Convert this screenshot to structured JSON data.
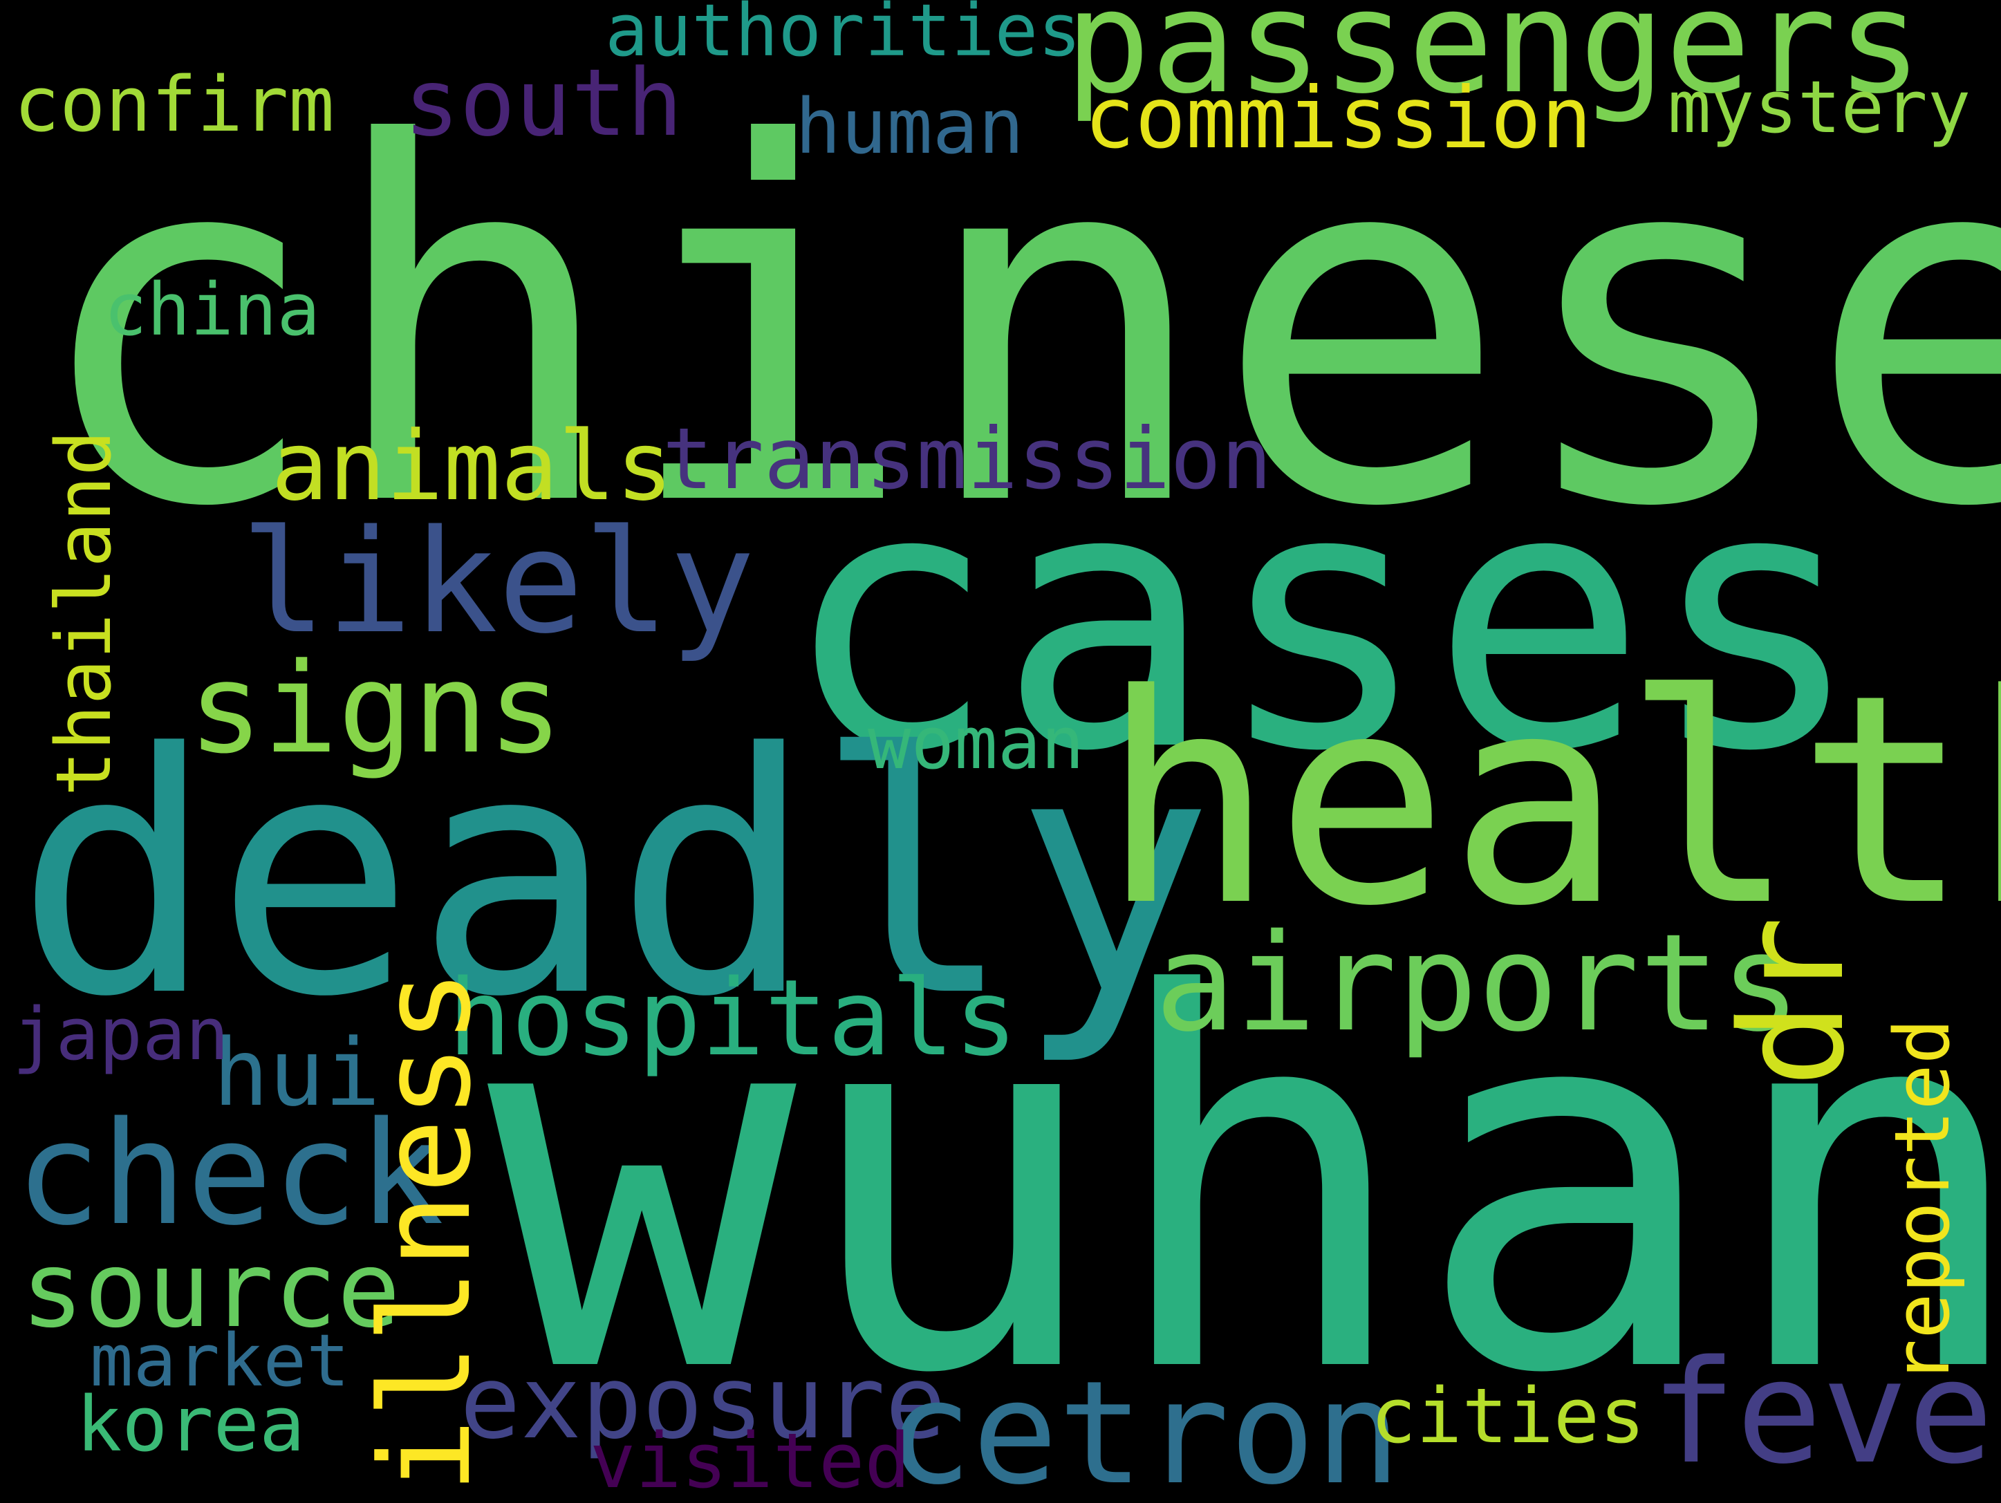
{
  "background": "#000000",
  "words": [
    {
      "key": "chinese",
      "text": "chinese",
      "color": "#5ec962"
    },
    {
      "key": "wuhan",
      "text": "wuhan",
      "color": "#2ab07f"
    },
    {
      "key": "cases",
      "text": "cases",
      "color": "#2ab07f"
    },
    {
      "key": "deadly",
      "text": "deadly",
      "color": "#21918c"
    },
    {
      "key": "health",
      "text": "health",
      "color": "#7ad151"
    },
    {
      "key": "passengers",
      "text": "passengers",
      "color": "#7ad151"
    },
    {
      "key": "likely",
      "text": "likely",
      "color": "#3b528b"
    },
    {
      "key": "signs",
      "text": "signs",
      "color": "#86d549"
    },
    {
      "key": "animals",
      "text": "animals",
      "color": "#c2df23"
    },
    {
      "key": "transmission",
      "text": "transmission",
      "color": "#46327e"
    },
    {
      "key": "south",
      "text": "south",
      "color": "#482475"
    },
    {
      "key": "authorities",
      "text": "authorities",
      "color": "#1f9a8a"
    },
    {
      "key": "commission",
      "text": "commission",
      "color": "#e5e419"
    },
    {
      "key": "human",
      "text": "human",
      "color": "#31688e"
    },
    {
      "key": "mystery",
      "text": "mystery",
      "color": "#8fd744"
    },
    {
      "key": "confirm",
      "text": "confirm",
      "color": "#a2da37"
    },
    {
      "key": "china",
      "text": "china",
      "color": "#4ac16d"
    },
    {
      "key": "airports",
      "text": "airports",
      "color": "#6ccd5a"
    },
    {
      "key": "hospitals",
      "text": "hospitals",
      "color": "#29af7f"
    },
    {
      "key": "woman",
      "text": "woman",
      "color": "#35b779"
    },
    {
      "key": "check",
      "text": "check",
      "color": "#2d708e"
    },
    {
      "key": "hui",
      "text": "hui",
      "color": "#2c728e"
    },
    {
      "key": "japan",
      "text": "japan",
      "color": "#472d7b"
    },
    {
      "key": "source",
      "text": "source",
      "color": "#65cb5e"
    },
    {
      "key": "market",
      "text": "market",
      "color": "#2f6c8e"
    },
    {
      "key": "korea",
      "text": "korea",
      "color": "#3aba76"
    },
    {
      "key": "exposure",
      "text": "exposure",
      "color": "#414487"
    },
    {
      "key": "cetron",
      "text": "cetron",
      "color": "#2e6f8e"
    },
    {
      "key": "cities",
      "text": "cities",
      "color": "#b5de2b"
    },
    {
      "key": "fever",
      "text": "fever",
      "color": "#433e85"
    },
    {
      "key": "visited",
      "text": "visited",
      "color": "#440154"
    },
    {
      "key": "thailand",
      "text": "thailand",
      "color": "#c8e020"
    },
    {
      "key": "illness",
      "text": "illness",
      "color": "#fde725"
    },
    {
      "key": "dr",
      "text": "dr",
      "color": "#d0e11c"
    },
    {
      "key": "reported",
      "text": "reported",
      "color": "#f1e51d"
    }
  ]
}
